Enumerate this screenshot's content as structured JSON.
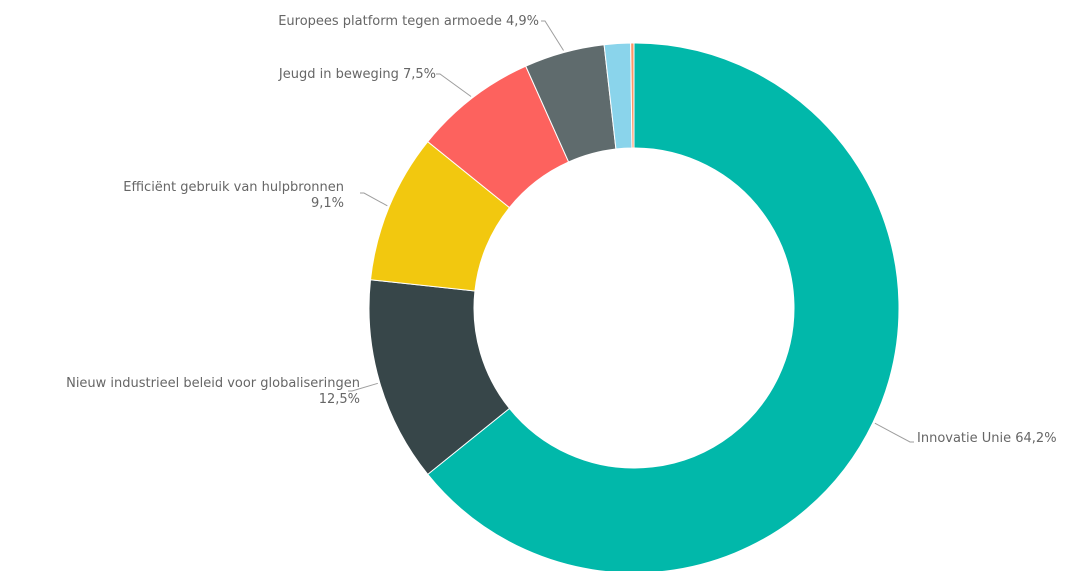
{
  "chart_data": {
    "type": "pie",
    "subtype": "donut",
    "title": "",
    "slices": [
      {
        "label": "Innovatie Unie",
        "value_label": "64,2%",
        "value": 64.2,
        "color": "#01B8AA"
      },
      {
        "label": "Nieuw industrieel beleid voor globaliseringen",
        "value_label": "12,5%",
        "value": 12.5,
        "color": "#374649"
      },
      {
        "label": "Efficiënt gebruik van hulpbronnen",
        "value_label": "9,1%",
        "value": 9.1,
        "color": "#F2C80F"
      },
      {
        "label": "Jeugd in beweging",
        "value_label": "7,5%",
        "value": 7.5,
        "color": "#FD625E"
      },
      {
        "label": "Europees platform tegen armoede",
        "value_label": "4,9%",
        "value": 4.9,
        "color": "#5F6B6D"
      },
      {
        "label": "",
        "value_label": "",
        "value": 1.6,
        "color": "#8AD4EB"
      },
      {
        "label": "",
        "value_label": "",
        "value": 0.2,
        "color": "#FE9666"
      }
    ],
    "legend": "none"
  }
}
